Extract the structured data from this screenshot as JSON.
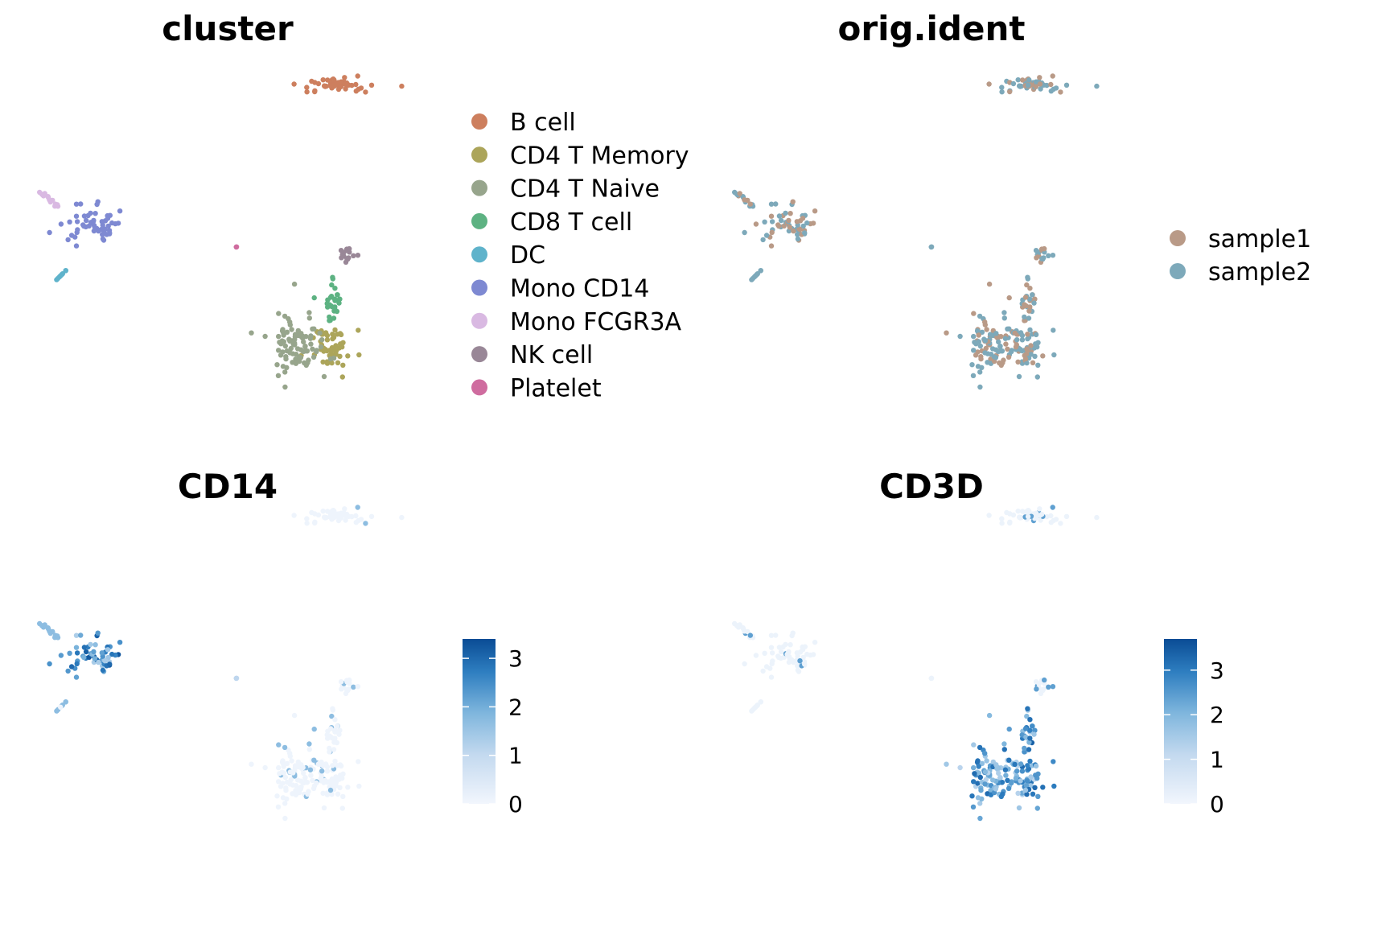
{
  "panels": {
    "cluster": {
      "title": "cluster",
      "legend": [
        {
          "label": "B cell",
          "color": "#CD7F5E"
        },
        {
          "label": "CD4 T Memory",
          "color": "#ACA55A"
        },
        {
          "label": "CD4 T Naive",
          "color": "#97A58C"
        },
        {
          "label": "CD8 T cell",
          "color": "#5DB282"
        },
        {
          "label": "DC",
          "color": "#5FB3CB"
        },
        {
          "label": "Mono CD14",
          "color": "#7E89D2"
        },
        {
          "label": "Mono FCGR3A",
          "color": "#D9B9E2"
        },
        {
          "label": "NK cell",
          "color": "#998797"
        },
        {
          "label": "Platelet",
          "color": "#CF6C9F"
        }
      ]
    },
    "origident": {
      "title": "orig.ident",
      "legend": [
        {
          "label": "sample1",
          "color": "#B99A87"
        },
        {
          "label": "sample2",
          "color": "#7DA9BA"
        }
      ]
    },
    "cd14": {
      "title": "CD14",
      "scale": {
        "min": 0,
        "max": 3.4,
        "ticks": [
          "3",
          "2",
          "1",
          "0"
        ],
        "low_color": "#EEF3FC",
        "high_color": "#0A4C95"
      }
    },
    "cd3d": {
      "title": "CD3D",
      "scale": {
        "min": 0,
        "max": 3.7,
        "ticks": [
          "3",
          "2",
          "1",
          "0"
        ],
        "low_color": "#EEF3FC",
        "high_color": "#0A4C95"
      }
    }
  },
  "chart_data": [
    {
      "type": "scatter",
      "title": "cluster",
      "description_of_values": "UMAP embedding colored by cell-type cluster",
      "series": [
        {
          "name": "B cell",
          "n": 50
        },
        {
          "name": "CD4 T Memory",
          "n": 55
        },
        {
          "name": "CD4 T Naive",
          "n": 95
        },
        {
          "name": "CD8 T cell",
          "n": 28
        },
        {
          "name": "DC",
          "n": 8
        },
        {
          "name": "Mono CD14",
          "n": 55
        },
        {
          "name": "Mono FCGR3A",
          "n": 14
        },
        {
          "name": "NK cell",
          "n": 15
        },
        {
          "name": "Platelet",
          "n": 2
        }
      ]
    },
    {
      "type": "scatter",
      "title": "orig.ident",
      "series": [
        {
          "name": "sample1"
        },
        {
          "name": "sample2"
        }
      ]
    },
    {
      "type": "scatter",
      "title": "CD14",
      "color_range": [
        0,
        3.4
      ],
      "high_expression_in": [
        "Mono CD14",
        "Mono FCGR3A",
        "Platelet"
      ]
    },
    {
      "type": "scatter",
      "title": "CD3D",
      "color_range": [
        0,
        3.7
      ],
      "high_expression_in": [
        "CD4 T Memory",
        "CD4 T Naive",
        "CD8 T cell"
      ]
    }
  ]
}
